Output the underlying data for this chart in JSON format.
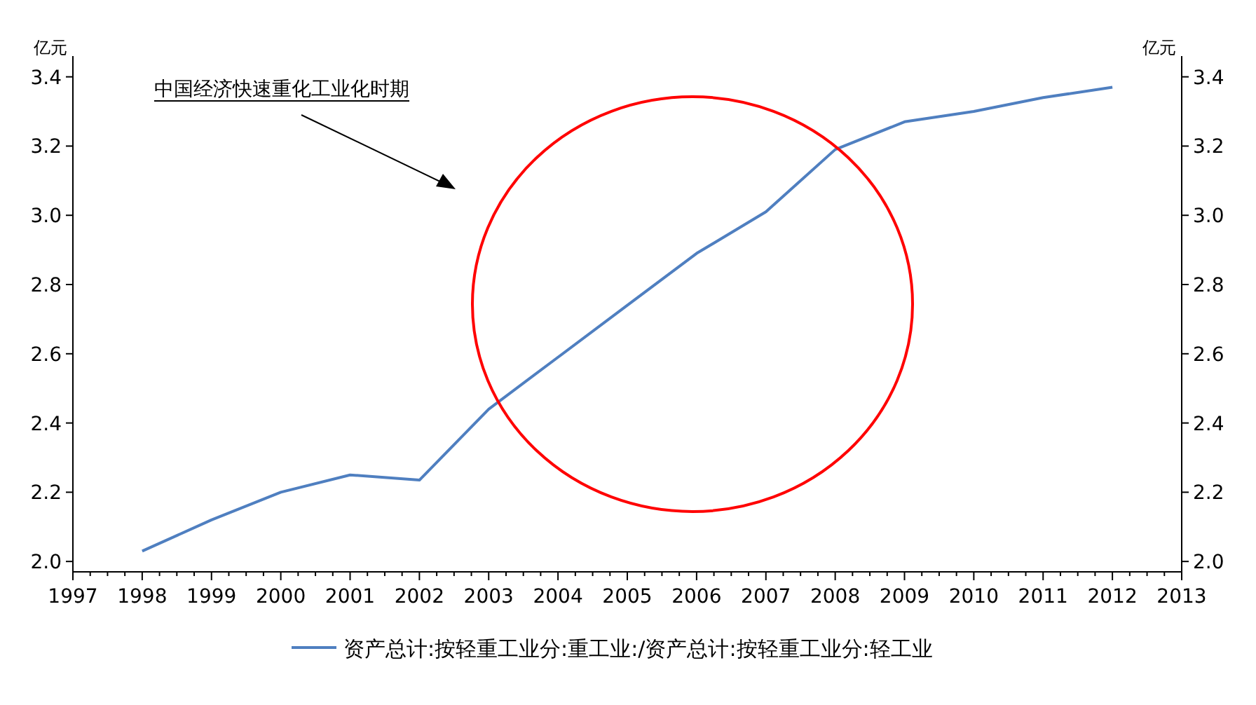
{
  "chart_data": {
    "type": "line",
    "ylabel": "亿元",
    "y2label": "亿元",
    "x": [
      1998,
      1999,
      2000,
      2001,
      2002,
      2003,
      2004,
      2005,
      2006,
      2007,
      2008,
      2009,
      2010,
      2011,
      2012
    ],
    "series": [
      {
        "name": "资产总计:按轻重工业分:重工业:/资产总计:按轻重工业分:轻工业",
        "color": "#4f7fc0",
        "values": [
          2.03,
          2.12,
          2.2,
          2.25,
          2.235,
          2.44,
          2.59,
          2.74,
          2.89,
          3.01,
          3.19,
          3.27,
          3.3,
          3.34,
          3.37
        ]
      }
    ],
    "xlim": [
      1997,
      2013
    ],
    "xticks": [
      1997,
      1998,
      1999,
      2000,
      2001,
      2002,
      2003,
      2004,
      2005,
      2006,
      2007,
      2008,
      2009,
      2010,
      2011,
      2012,
      2013
    ],
    "ylim": [
      1.97,
      3.46
    ],
    "yticks": [
      {
        "value": 2.0,
        "label": "2.0"
      },
      {
        "value": 2.2,
        "label": "2.2"
      },
      {
        "value": 2.4,
        "label": "2.4"
      },
      {
        "value": 2.6,
        "label": "2.6"
      },
      {
        "value": 2.8,
        "label": "2.8"
      },
      {
        "value": 3.0,
        "label": "3.0"
      },
      {
        "value": 3.2,
        "label": "3.2"
      },
      {
        "value": 3.4,
        "label": "3.4"
      }
    ],
    "y2lim": [
      1.97,
      3.46
    ],
    "y2ticks": [
      {
        "value": 2.0,
        "label": "2.0"
      },
      {
        "value": 2.2,
        "label": "2.2"
      },
      {
        "value": 2.4,
        "label": "2.4"
      },
      {
        "value": 2.6,
        "label": "2.6"
      },
      {
        "value": 2.8,
        "label": "2.8"
      },
      {
        "value": 3.0,
        "label": "3.0"
      },
      {
        "value": 3.2,
        "label": "3.2"
      },
      {
        "value": 3.4,
        "label": "3.4"
      }
    ],
    "annotations": [
      "中国经济快速重化工业化时期"
    ],
    "grid": false,
    "legend": "bottom",
    "marker": "none",
    "line_style": "solid"
  }
}
